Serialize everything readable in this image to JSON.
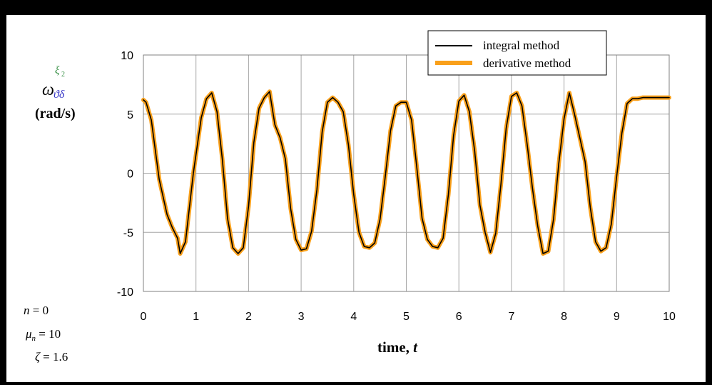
{
  "chart_data": {
    "type": "line",
    "title": "",
    "xlabel": "time, t",
    "xlabel_parts": {
      "text": "time, ",
      "var": "t"
    },
    "ylabel": {
      "symbol": "ω",
      "superscript": "ξ",
      "superscript_sub": "2",
      "subscript": "ϑδ",
      "units": "(rad/s)"
    },
    "xlim": [
      0,
      10
    ],
    "ylim": [
      -10,
      10
    ],
    "x_ticks": [
      0,
      1,
      2,
      3,
      4,
      5,
      6,
      7,
      8,
      9,
      10
    ],
    "y_ticks": [
      10,
      5,
      0,
      -5,
      -10
    ],
    "grid": true,
    "legend_position": "top-right",
    "series": [
      {
        "name": "integral method",
        "color": "#000000",
        "x": [
          0,
          0.05,
          0.15,
          0.3,
          0.45,
          0.55,
          0.65,
          0.7,
          0.8,
          0.95,
          1.1,
          1.2,
          1.3,
          1.4,
          1.5,
          1.6,
          1.7,
          1.8,
          1.9,
          2.0,
          2.1,
          2.2,
          2.3,
          2.4,
          2.5,
          2.6,
          2.7,
          2.8,
          2.9,
          3.0,
          3.1,
          3.2,
          3.3,
          3.4,
          3.5,
          3.6,
          3.7,
          3.8,
          3.9,
          4.0,
          4.1,
          4.2,
          4.3,
          4.4,
          4.5,
          4.6,
          4.7,
          4.8,
          4.9,
          5.0,
          5.1,
          5.2,
          5.3,
          5.4,
          5.5,
          5.6,
          5.7,
          5.8,
          5.9,
          6.0,
          6.1,
          6.2,
          6.3,
          6.4,
          6.5,
          6.6,
          6.7,
          6.8,
          6.9,
          7.0,
          7.1,
          7.2,
          7.3,
          7.4,
          7.5,
          7.6,
          7.7,
          7.8,
          7.9,
          8.0,
          8.1,
          8.2,
          8.3,
          8.4,
          8.5,
          8.6,
          8.7,
          8.8,
          8.9,
          9.0,
          9.1,
          9.2,
          9.3,
          9.4,
          9.5,
          9.6,
          9.7,
          9.8,
          9.9,
          10.0
        ],
        "y": [
          6.2,
          6.0,
          4.5,
          -0.5,
          -3.5,
          -4.6,
          -5.5,
          -6.8,
          -5.8,
          0.0,
          4.7,
          6.3,
          6.8,
          5.2,
          1.2,
          -3.8,
          -6.3,
          -6.8,
          -6.3,
          -2.8,
          2.6,
          5.5,
          6.4,
          6.9,
          4.1,
          3.0,
          1.2,
          -3.0,
          -5.6,
          -6.5,
          -6.4,
          -4.9,
          -1.4,
          3.5,
          6.0,
          6.4,
          6.0,
          5.2,
          2.4,
          -1.8,
          -5.0,
          -6.2,
          -6.3,
          -5.9,
          -3.9,
          -0.3,
          3.6,
          5.7,
          6.0,
          6.0,
          4.5,
          0.5,
          -3.8,
          -5.6,
          -6.2,
          -6.3,
          -5.5,
          -1.8,
          3.2,
          6.1,
          6.6,
          5.2,
          1.9,
          -2.7,
          -5.0,
          -6.7,
          -5.1,
          -0.9,
          3.8,
          6.5,
          6.8,
          5.7,
          2.4,
          -1.3,
          -4.5,
          -6.8,
          -6.6,
          -3.9,
          0.8,
          4.6,
          6.8,
          5.0,
          3.0,
          1.0,
          -2.9,
          -5.8,
          -6.6,
          -6.3,
          -4.3,
          -0.3,
          3.4,
          5.9,
          6.3,
          6.3,
          6.4,
          6.4,
          6.4,
          6.4,
          6.4,
          6.4
        ]
      },
      {
        "name": "derivative method",
        "color": "#F9A01B",
        "x": [
          0,
          0.05,
          0.15,
          0.3,
          0.45,
          0.55,
          0.65,
          0.7,
          0.8,
          0.95,
          1.1,
          1.2,
          1.3,
          1.4,
          1.5,
          1.6,
          1.7,
          1.8,
          1.9,
          2.0,
          2.1,
          2.2,
          2.3,
          2.4,
          2.5,
          2.6,
          2.7,
          2.8,
          2.9,
          3.0,
          3.1,
          3.2,
          3.3,
          3.4,
          3.5,
          3.6,
          3.7,
          3.8,
          3.9,
          4.0,
          4.1,
          4.2,
          4.3,
          4.4,
          4.5,
          4.6,
          4.7,
          4.8,
          4.9,
          5.0,
          5.1,
          5.2,
          5.3,
          5.4,
          5.5,
          5.6,
          5.7,
          5.8,
          5.9,
          6.0,
          6.1,
          6.2,
          6.3,
          6.4,
          6.5,
          6.6,
          6.7,
          6.8,
          6.9,
          7.0,
          7.1,
          7.2,
          7.3,
          7.4,
          7.5,
          7.6,
          7.7,
          7.8,
          7.9,
          8.0,
          8.1,
          8.2,
          8.3,
          8.4,
          8.5,
          8.6,
          8.7,
          8.8,
          8.9,
          9.0,
          9.1,
          9.2,
          9.3,
          9.4,
          9.5,
          9.6,
          9.7,
          9.8,
          9.9,
          10.0
        ],
        "y": [
          6.2,
          6.0,
          4.5,
          -0.5,
          -3.5,
          -4.6,
          -5.5,
          -6.8,
          -5.8,
          0.0,
          4.7,
          6.3,
          6.8,
          5.2,
          1.2,
          -3.8,
          -6.3,
          -6.8,
          -6.3,
          -2.8,
          2.6,
          5.5,
          6.4,
          6.9,
          4.1,
          3.0,
          1.2,
          -3.0,
          -5.6,
          -6.5,
          -6.4,
          -4.9,
          -1.4,
          3.5,
          6.0,
          6.4,
          6.0,
          5.2,
          2.4,
          -1.8,
          -5.0,
          -6.2,
          -6.3,
          -5.9,
          -3.9,
          -0.3,
          3.6,
          5.7,
          6.0,
          6.0,
          4.5,
          0.5,
          -3.8,
          -5.6,
          -6.2,
          -6.3,
          -5.5,
          -1.8,
          3.2,
          6.1,
          6.6,
          5.2,
          1.9,
          -2.7,
          -5.0,
          -6.7,
          -5.1,
          -0.9,
          3.8,
          6.5,
          6.8,
          5.7,
          2.4,
          -1.3,
          -4.5,
          -6.8,
          -6.6,
          -3.9,
          0.8,
          4.6,
          6.8,
          5.0,
          3.0,
          1.0,
          -2.9,
          -5.8,
          -6.6,
          -6.3,
          -4.3,
          -0.3,
          3.4,
          5.9,
          6.3,
          6.3,
          6.4,
          6.4,
          6.4,
          6.4,
          6.4,
          6.4
        ]
      }
    ],
    "annotations": [
      {
        "lhs": "n",
        "rhs": "0"
      },
      {
        "lhs": "μ",
        "lhs_sub": "n",
        "rhs": "10"
      },
      {
        "lhs": "ζ",
        "rhs": "1.6"
      }
    ]
  }
}
